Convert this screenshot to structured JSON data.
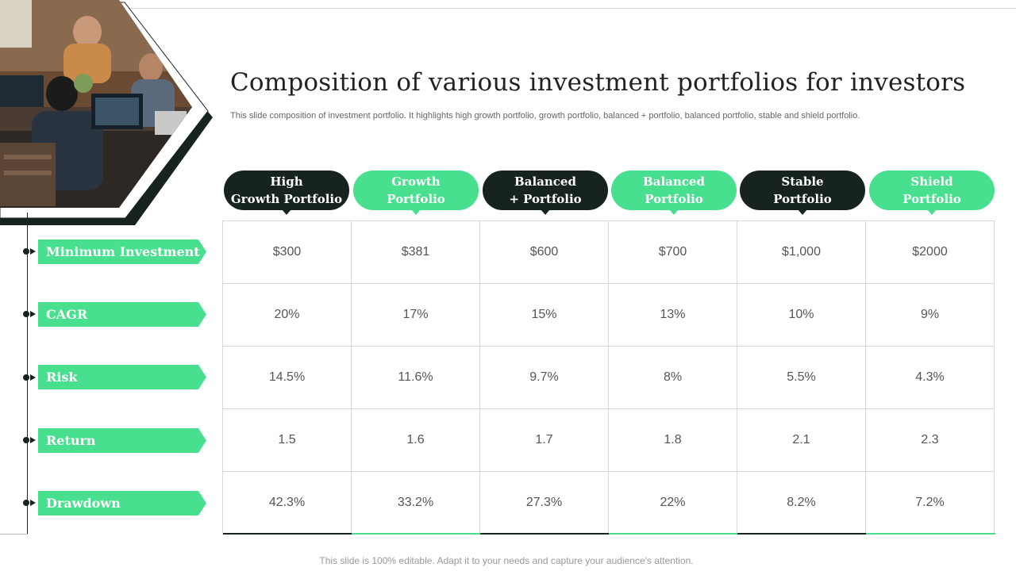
{
  "title": "Composition of  various investment portfolios for investors",
  "subtitle": "This slide composition of investment portfolio. It highlights high growth portfolio, growth portfolio, balanced + portfolio, balanced portfolio, stable and shield portfolio.",
  "footer": "This slide is 100% editable. Adapt it to your needs and capture your audience's attention.",
  "colors": {
    "dark": "#17231f",
    "green": "#48df8f",
    "grid": "#d9d9d9"
  },
  "columns": [
    {
      "label": "High\nGrowth Portfolio",
      "style": "dark"
    },
    {
      "label": "Growth\nPortfolio",
      "style": "green"
    },
    {
      "label": "Balanced\n+ Portfolio",
      "style": "dark"
    },
    {
      "label": "Balanced\nPortfolio",
      "style": "green"
    },
    {
      "label": "Stable\nPortfolio",
      "style": "dark"
    },
    {
      "label": "Shield\nPortfolio",
      "style": "green"
    }
  ],
  "rows": [
    {
      "label": "Minimum Investment",
      "values": [
        "$300",
        "$381",
        "$600",
        "$700",
        "$1,000",
        "$2000"
      ]
    },
    {
      "label": "CAGR",
      "values": [
        "20%",
        "17%",
        "15%",
        "13%",
        "10%",
        "9%"
      ]
    },
    {
      "label": "Risk",
      "values": [
        "14.5%",
        "11.6%",
        "9.7%",
        "8%",
        "5.5%",
        "4.3%"
      ]
    },
    {
      "label": "Return",
      "values": [
        "1.5",
        "1.6",
        "1.7",
        "1.8",
        "2.1",
        "2.3"
      ]
    },
    {
      "label": "Drawdown",
      "values": [
        "42.3%",
        "33.2%",
        "27.3%",
        "22%",
        "8.2%",
        "7.2%"
      ]
    }
  ]
}
